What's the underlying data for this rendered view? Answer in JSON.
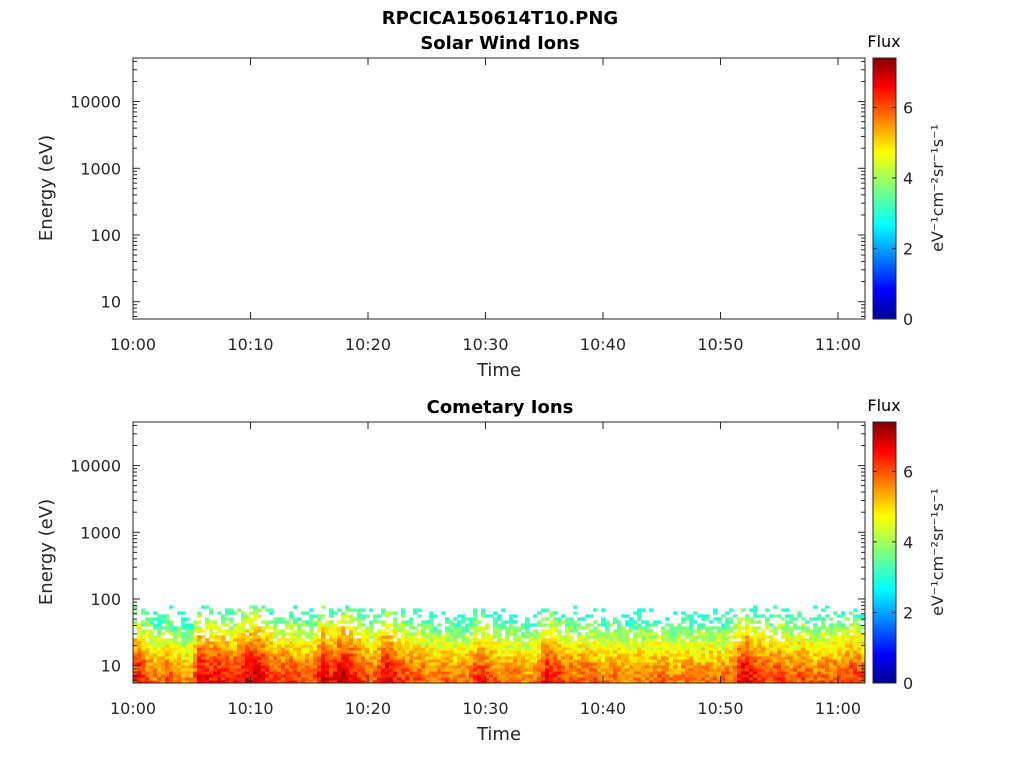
{
  "chart_data": [
    {
      "type": "heatmap",
      "title": "RPCICA150614T10.PNG",
      "subtitle": "Solar Wind Ions",
      "xlabel": "Time",
      "ylabel": "Energy (eV)",
      "x_tick_labels": [
        "10:00",
        "10:10",
        "10:20",
        "10:30",
        "10:40",
        "10:50",
        "11:00"
      ],
      "x_range_minutes": [
        0,
        62.3
      ],
      "y_tick_labels": [
        "10",
        "100",
        "1000",
        "10000"
      ],
      "y_scale": "log",
      "ylim": [
        5.5,
        45000
      ],
      "colorbar": {
        "title": "Flux",
        "unit_label": "eV⁻¹cm⁻²sr⁻¹s⁻¹",
        "tick_labels": [
          "0",
          "2",
          "4",
          "6"
        ],
        "range": [
          0,
          7.4
        ],
        "colormap": "jet"
      },
      "grid": false,
      "flux_profile": []
    },
    {
      "type": "heatmap",
      "title": "Cometary Ions",
      "xlabel": "Time",
      "ylabel": "Energy (eV)",
      "x_tick_labels": [
        "10:00",
        "10:10",
        "10:20",
        "10:30",
        "10:40",
        "10:50",
        "11:00"
      ],
      "x_range_minutes": [
        0,
        62.3
      ],
      "y_tick_labels": [
        "10",
        "100",
        "1000",
        "10000"
      ],
      "y_scale": "log",
      "ylim": [
        5.5,
        45000
      ],
      "colorbar": {
        "title": "Flux",
        "unit_label": "eV⁻¹cm⁻²sr⁻¹s⁻¹",
        "tick_labels": [
          "0",
          "2",
          "4",
          "6"
        ],
        "range": [
          0,
          7.4
        ],
        "colormap": "jet"
      },
      "grid": false,
      "energy_top_eV": 80,
      "flux_profile": [
        {
          "t": 0.0,
          "f": 6.2
        },
        {
          "t": 0.5,
          "f": 6.5
        },
        {
          "t": 1.0,
          "f": 6.0
        },
        {
          "t": 2.0,
          "f": 5.6
        },
        {
          "t": 3.0,
          "f": 5.9
        },
        {
          "t": 4.0,
          "f": 5.5
        },
        {
          "t": 5.0,
          "f": 5.4
        },
        {
          "t": 5.7,
          "f": 6.8
        },
        {
          "t": 6.5,
          "f": 6.4
        },
        {
          "t": 7.5,
          "f": 6.5
        },
        {
          "t": 8.5,
          "f": 6.2
        },
        {
          "t": 9.5,
          "f": 6.6
        },
        {
          "t": 10.5,
          "f": 6.9
        },
        {
          "t": 11.5,
          "f": 6.3
        },
        {
          "t": 12.5,
          "f": 6.0
        },
        {
          "t": 13.5,
          "f": 6.1
        },
        {
          "t": 14.5,
          "f": 5.8
        },
        {
          "t": 15.5,
          "f": 6.0
        },
        {
          "t": 16.3,
          "f": 6.9
        },
        {
          "t": 17.0,
          "f": 6.3
        },
        {
          "t": 17.8,
          "f": 7.0
        },
        {
          "t": 18.5,
          "f": 6.7
        },
        {
          "t": 19.5,
          "f": 6.1
        },
        {
          "t": 20.5,
          "f": 5.8
        },
        {
          "t": 21.5,
          "f": 6.8
        },
        {
          "t": 22.5,
          "f": 6.2
        },
        {
          "t": 23.5,
          "f": 6.0
        },
        {
          "t": 24.5,
          "f": 5.9
        },
        {
          "t": 25.5,
          "f": 5.6
        },
        {
          "t": 26.5,
          "f": 5.8
        },
        {
          "t": 27.5,
          "f": 5.5
        },
        {
          "t": 28.5,
          "f": 5.7
        },
        {
          "t": 29.5,
          "f": 6.3
        },
        {
          "t": 30.5,
          "f": 5.9
        },
        {
          "t": 31.5,
          "f": 5.6
        },
        {
          "t": 32.5,
          "f": 5.7
        },
        {
          "t": 33.5,
          "f": 5.4
        },
        {
          "t": 34.5,
          "f": 5.8
        },
        {
          "t": 35.3,
          "f": 6.7
        },
        {
          "t": 36.0,
          "f": 6.2
        },
        {
          "t": 37.0,
          "f": 5.9
        },
        {
          "t": 38.0,
          "f": 5.8
        },
        {
          "t": 39.0,
          "f": 5.9
        },
        {
          "t": 40.0,
          "f": 5.6
        },
        {
          "t": 41.0,
          "f": 5.8
        },
        {
          "t": 42.0,
          "f": 5.5
        },
        {
          "t": 43.0,
          "f": 5.7
        },
        {
          "t": 44.0,
          "f": 5.6
        },
        {
          "t": 45.0,
          "f": 5.8
        },
        {
          "t": 46.0,
          "f": 5.5
        },
        {
          "t": 47.0,
          "f": 5.7
        },
        {
          "t": 48.0,
          "f": 5.6
        },
        {
          "t": 49.0,
          "f": 5.7
        },
        {
          "t": 50.0,
          "f": 5.6
        },
        {
          "t": 51.0,
          "f": 5.8
        },
        {
          "t": 52.0,
          "f": 6.8
        },
        {
          "t": 53.0,
          "f": 6.3
        },
        {
          "t": 54.0,
          "f": 6.0
        },
        {
          "t": 55.0,
          "f": 6.2
        },
        {
          "t": 56.0,
          "f": 5.8
        },
        {
          "t": 57.0,
          "f": 6.0
        },
        {
          "t": 58.0,
          "f": 5.7
        },
        {
          "t": 59.0,
          "f": 5.9
        },
        {
          "t": 60.0,
          "f": 5.8
        },
        {
          "t": 61.0,
          "f": 6.2
        },
        {
          "t": 62.3,
          "f": 6.0
        }
      ]
    }
  ]
}
